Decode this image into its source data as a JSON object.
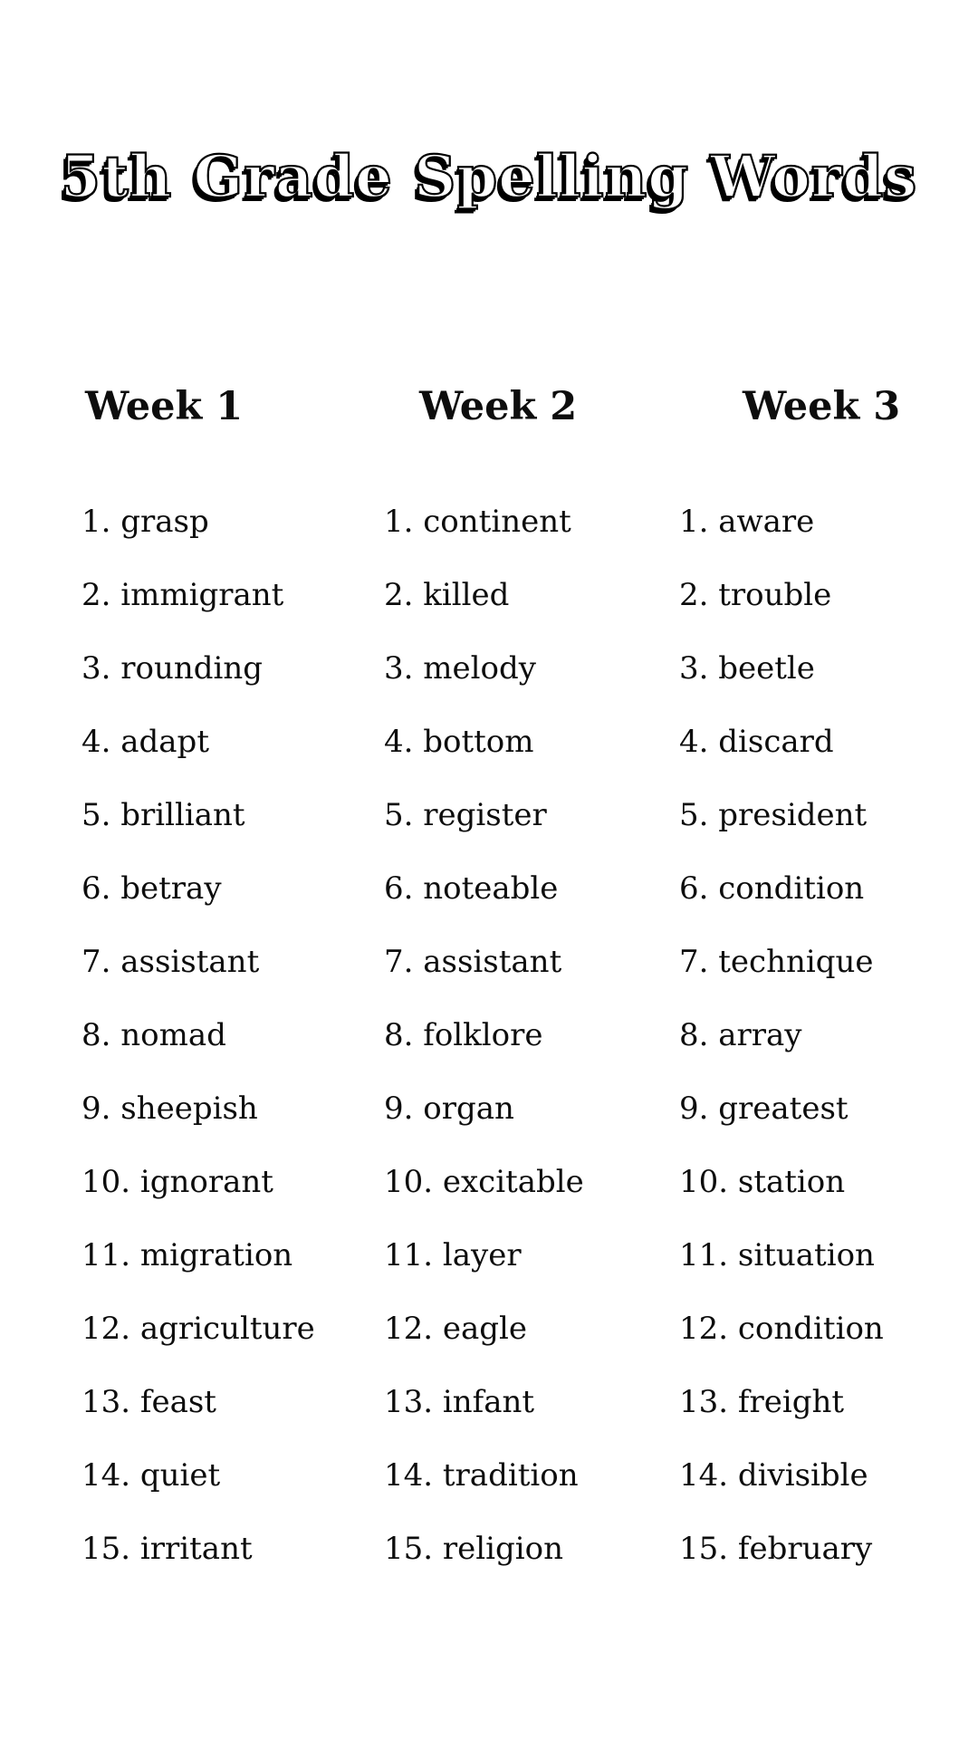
{
  "title": "5th Grade Spelling Words",
  "colors": {
    "background": "#ffffff",
    "text": "#0d0d0d",
    "title_fill": "#ffffff",
    "title_outline": "#000000"
  },
  "columns": [
    {
      "header": "Week 1",
      "items": [
        "1. grasp",
        "2. immigrant",
        "3. rounding",
        "4. adapt",
        "5. brilliant",
        "6. betray",
        "7. assistant",
        "8. nomad",
        "9. sheepish",
        "10. ignorant",
        "11. migration",
        "12. agriculture",
        "13. feast",
        "14. quiet",
        "15. irritant"
      ]
    },
    {
      "header": "Week 2",
      "items": [
        "1. continent",
        "2. killed",
        "3. melody",
        "4. bottom",
        "5. register",
        "6. noteable",
        "7. assistant",
        "8. folklore",
        "9. organ",
        "10. excitable",
        "11. layer",
        "12. eagle",
        "13. infant",
        "14. tradition",
        "15. religion"
      ]
    },
    {
      "header": "Week 3",
      "items": [
        "1. aware",
        "2. trouble",
        "3. beetle",
        "4. discard",
        "5. president",
        "6. condition",
        "7. technique",
        "8. array",
        "9. greatest",
        "10. station",
        "11. situation",
        "12. condition",
        "13. freight",
        "14. divisible",
        "15. february"
      ]
    }
  ]
}
